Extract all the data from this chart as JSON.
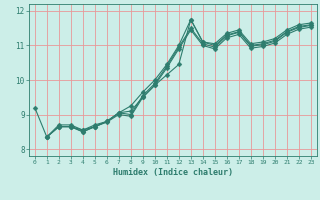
{
  "title": "",
  "xlabel": "Humidex (Indice chaleur)",
  "bg_color": "#cceee8",
  "grid_color": "#e89898",
  "line_color": "#2e7d6e",
  "xlim": [
    -0.5,
    23.5
  ],
  "ylim": [
    7.8,
    12.2
  ],
  "xticks": [
    0,
    1,
    2,
    3,
    4,
    5,
    6,
    7,
    8,
    9,
    10,
    11,
    12,
    13,
    14,
    15,
    16,
    17,
    18,
    19,
    20,
    21,
    22,
    23
  ],
  "yticks": [
    8,
    9,
    10,
    11,
    12
  ],
  "line1_x": [
    0,
    1,
    2,
    3,
    4,
    5,
    6,
    7,
    8,
    9,
    10,
    11,
    12,
    13,
    14,
    15,
    16,
    17,
    18,
    19,
    20,
    21,
    22,
    23
  ],
  "line1_y": [
    9.2,
    8.35,
    8.7,
    8.7,
    8.55,
    8.7,
    8.8,
    9.05,
    9.1,
    9.5,
    9.85,
    10.15,
    10.45,
    11.75,
    11.1,
    11.05,
    11.35,
    11.45,
    11.05,
    11.1,
    11.2,
    11.45,
    11.6,
    11.65
  ],
  "line2_x": [
    1,
    2,
    3,
    4,
    5,
    6,
    7,
    8,
    9,
    10,
    11,
    12,
    13,
    14,
    15,
    16,
    17,
    18,
    19,
    20,
    21,
    22,
    23
  ],
  "line2_y": [
    8.35,
    8.65,
    8.65,
    8.55,
    8.65,
    8.8,
    9.05,
    9.25,
    9.65,
    10.0,
    10.45,
    11.0,
    11.75,
    11.1,
    11.0,
    11.3,
    11.4,
    11.0,
    11.05,
    11.15,
    11.4,
    11.55,
    11.6
  ],
  "line3_x": [
    1,
    2,
    3,
    4,
    5,
    6,
    7,
    8,
    9,
    10,
    11,
    12,
    13,
    14,
    15,
    16,
    17,
    18,
    19,
    20,
    21,
    22,
    23
  ],
  "line3_y": [
    8.35,
    8.65,
    8.65,
    8.5,
    8.65,
    8.8,
    9.05,
    9.0,
    9.55,
    9.9,
    10.4,
    10.95,
    11.5,
    11.05,
    10.95,
    11.28,
    11.38,
    10.98,
    11.02,
    11.12,
    11.38,
    11.52,
    11.58
  ],
  "line4_x": [
    1,
    2,
    3,
    4,
    5,
    6,
    7,
    8,
    9,
    10,
    11,
    12,
    13,
    14,
    15,
    16,
    17,
    18,
    19,
    20,
    21,
    22,
    23
  ],
  "line4_y": [
    8.35,
    8.65,
    8.65,
    8.5,
    8.65,
    8.78,
    9.0,
    8.95,
    9.5,
    9.85,
    10.35,
    10.9,
    11.45,
    11.0,
    10.9,
    11.22,
    11.32,
    10.92,
    10.97,
    11.07,
    11.32,
    11.47,
    11.53
  ]
}
